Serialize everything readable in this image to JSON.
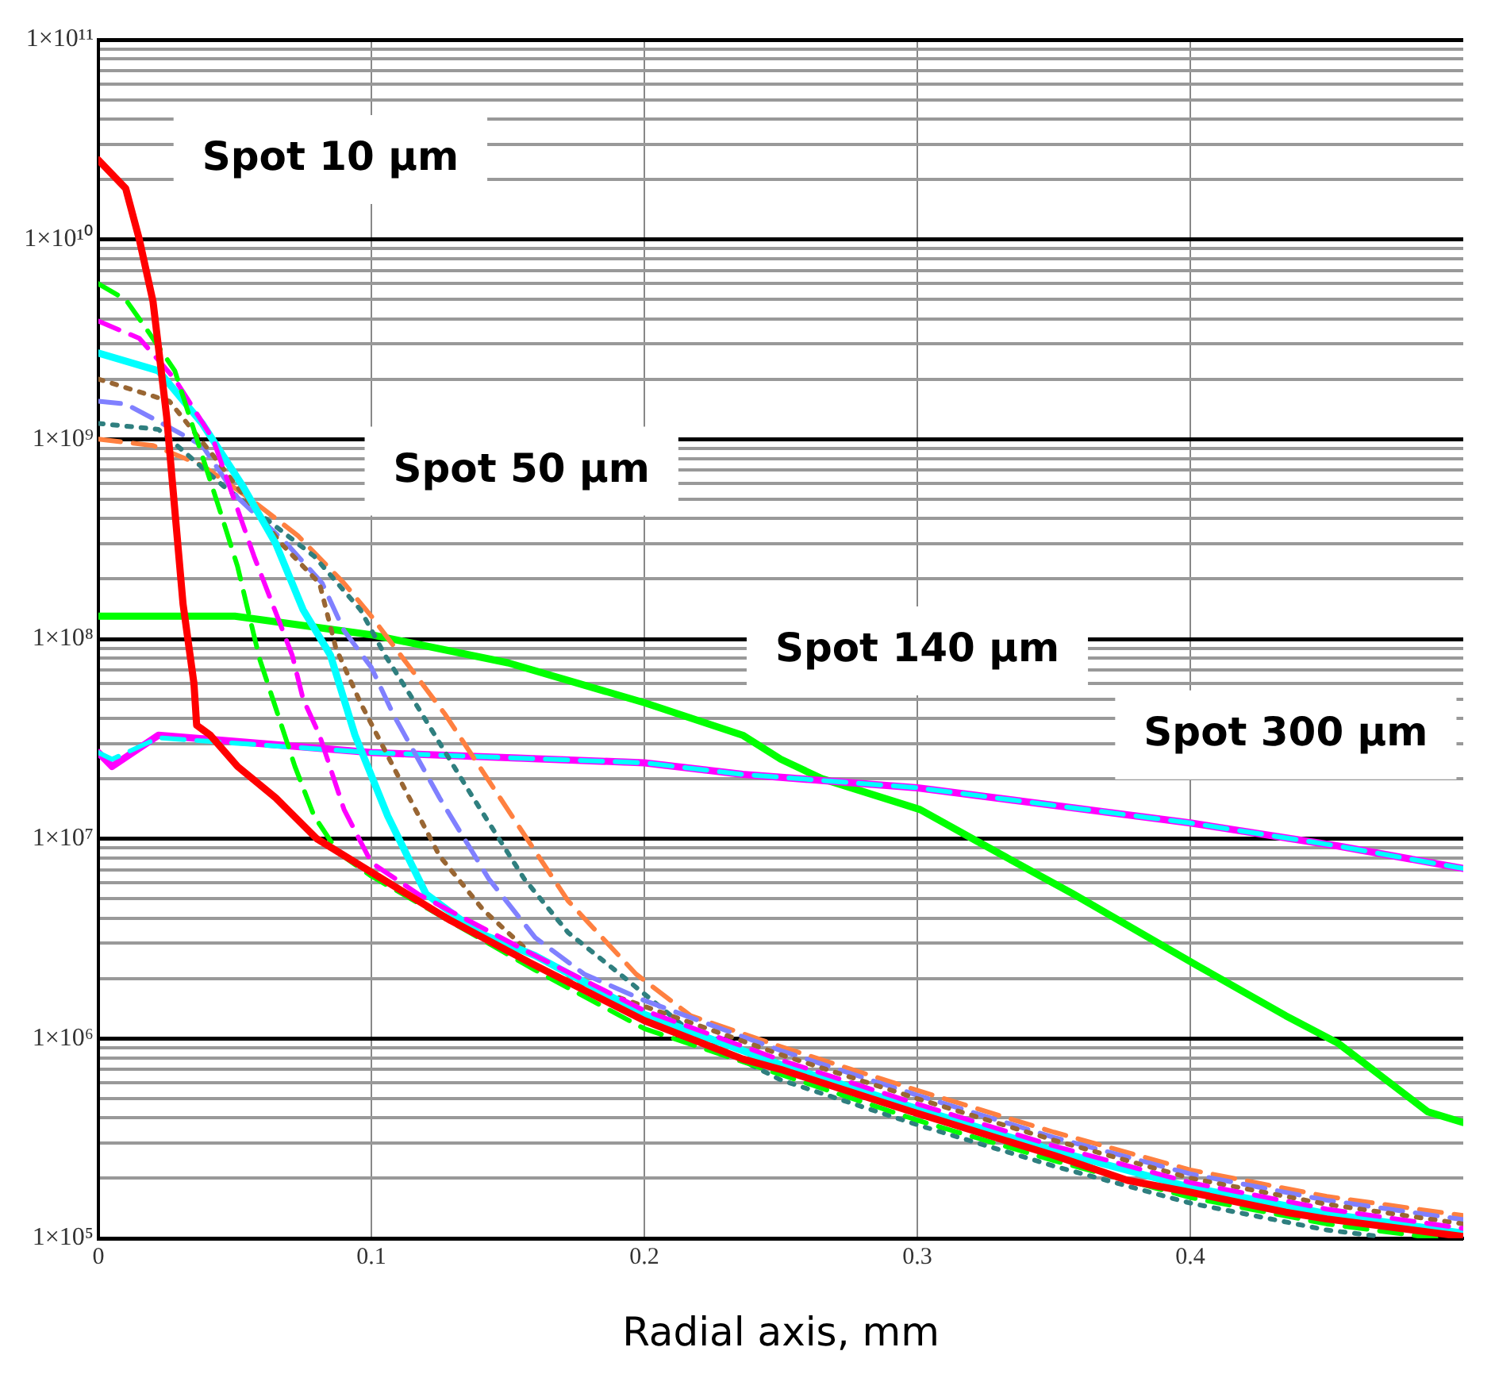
{
  "chart_data": {
    "type": "line",
    "xlabel": "Radial axis, mm",
    "log": "y",
    "grid": true,
    "marker": "none",
    "xlim": [
      0,
      0.5
    ],
    "xticks": [
      0,
      0.1,
      0.2,
      0.3,
      0.4
    ],
    "ylim": [
      100000.0,
      100000000000.0
    ],
    "yticks": [
      {
        "value": 100000.0,
        "label": "1×10⁵"
      },
      {
        "value": 200000.0,
        "label": null
      },
      {
        "value": 300000.0,
        "label": null
      },
      {
        "value": 400000.0,
        "label": null
      },
      {
        "value": 500000.0,
        "label": null
      },
      {
        "value": 600000.0,
        "label": null
      },
      {
        "value": 700000.0,
        "label": null
      },
      {
        "value": 800000.0,
        "label": null
      },
      {
        "value": 900000.0,
        "label": null
      },
      {
        "value": 1000000.0,
        "label": "1×10⁶"
      },
      {
        "value": 2000000.0,
        "label": null
      },
      {
        "value": 3000000.0,
        "label": null
      },
      {
        "value": 4000000.0,
        "label": null
      },
      {
        "value": 5000000.0,
        "label": null
      },
      {
        "value": 6000000.0,
        "label": null
      },
      {
        "value": 7000000.0,
        "label": null
      },
      {
        "value": 8000000.0,
        "label": null
      },
      {
        "value": 9000000.0,
        "label": null
      },
      {
        "value": 10000000.0,
        "label": "1×10⁷"
      },
      {
        "value": 20000000.0,
        "label": null
      },
      {
        "value": 30000000.0,
        "label": null
      },
      {
        "value": 40000000.0,
        "label": null
      },
      {
        "value": 50000000.0,
        "label": null
      },
      {
        "value": 60000000.0,
        "label": null
      },
      {
        "value": 70000000.0,
        "label": null
      },
      {
        "value": 80000000.0,
        "label": null
      },
      {
        "value": 90000000.0,
        "label": null
      },
      {
        "value": 100000000.0,
        "label": "1×10⁸"
      },
      {
        "value": 200000000.0,
        "label": null
      },
      {
        "value": 300000000.0,
        "label": null
      },
      {
        "value": 400000000.0,
        "label": null
      },
      {
        "value": 500000000.0,
        "label": null
      },
      {
        "value": 600000000.0,
        "label": null
      },
      {
        "value": 700000000.0,
        "label": null
      },
      {
        "value": 800000000.0,
        "label": null
      },
      {
        "value": 900000000.0,
        "label": null
      },
      {
        "value": 1000000000.0,
        "label": "1×10⁹"
      },
      {
        "value": 2000000000.0,
        "label": null
      },
      {
        "value": 3000000000.0,
        "label": null
      },
      {
        "value": 4000000000.0,
        "label": null
      },
      {
        "value": 5000000000.0,
        "label": null
      },
      {
        "value": 6000000000.0,
        "label": null
      },
      {
        "value": 7000000000.0,
        "label": null
      },
      {
        "value": 8000000000.0,
        "label": null
      },
      {
        "value": 9000000000.0,
        "label": null
      },
      {
        "value": 10000000000.0,
        "label": "1×10¹⁰"
      },
      {
        "value": 20000000000.0,
        "label": null
      },
      {
        "value": 30000000000.0,
        "label": null
      },
      {
        "value": 40000000000.0,
        "label": null
      },
      {
        "value": 50000000000.0,
        "label": null
      },
      {
        "value": 60000000000.0,
        "label": null
      },
      {
        "value": 70000000000.0,
        "label": null
      },
      {
        "value": 80000000000.0,
        "label": null
      },
      {
        "value": 90000000000.0,
        "label": null
      },
      {
        "value": 100000000000.0,
        "label": "1×10¹¹"
      }
    ],
    "annotations": [
      "Spot 10 µm",
      "Spot 50 µm",
      "Spot 140 µm",
      "Spot 300 µm"
    ],
    "series": [
      {
        "color": "#00ff00",
        "line_style": "solid",
        "x": [
          0,
          0.05,
          0.1,
          0.15,
          0.2,
          0.236,
          0.25,
          0.265,
          0.301,
          0.322,
          0.357,
          0.403,
          0.435,
          0.454,
          0.487,
          0.5
        ],
        "values": [
          130000000.0,
          130000000.0,
          105000000.0,
          76000000.0,
          48000000.0,
          33000000.0,
          25000000.0,
          20000000.0,
          14000000.0,
          9700000.0,
          5300000.0,
          2300000.0,
          1300000.0,
          950000.0,
          430000.0,
          380000.0
        ]
      },
      {
        "color": "#ff00ff",
        "line_style": "solid",
        "x": [
          0,
          0.005,
          0.022,
          0.1,
          0.2,
          0.236,
          0.3,
          0.4,
          0.454,
          0.5
        ],
        "values": [
          27000000.0,
          23000000.0,
          33000000.0,
          27000000.0,
          24000000.0,
          21000000.0,
          18000000.0,
          12000000.0,
          9200000.0,
          7100000.0
        ]
      },
      {
        "color": "#00ffff",
        "line_style": "dashed",
        "x": [
          0,
          0.005,
          0.022,
          0.1,
          0.2,
          0.236,
          0.3,
          0.4,
          0.454,
          0.5
        ],
        "values": [
          27000000.0,
          25000000.0,
          32000000.0,
          27000000.0,
          24000000.0,
          21000000.0,
          18000000.0,
          12000000.0,
          9200000.0,
          7100000.0
        ]
      },
      {
        "color": "#ff8040",
        "line_style": "dashed",
        "x": [
          0,
          0.02,
          0.038,
          0.055,
          0.073,
          0.09,
          0.1,
          0.127,
          0.155,
          0.172,
          0.197,
          0.217,
          0.25,
          0.3,
          0.35,
          0.4,
          0.45,
          0.5
        ],
        "values": [
          1000000000.0,
          930000000.0,
          740000000.0,
          510000000.0,
          330000000.0,
          190000000.0,
          130000000.0,
          42000000.0,
          11000000.0,
          4900000.0,
          2100000.0,
          1300000.0,
          910000.0,
          550000.0,
          340000.0,
          220000.0,
          162000.0,
          130000.0
        ]
      },
      {
        "color": "#2f7f7f",
        "line_style": "dotted",
        "x": [
          0,
          0.022,
          0.046,
          0.079,
          0.096,
          0.105,
          0.116,
          0.135,
          0.156,
          0.172,
          0.193,
          0.22,
          0.25,
          0.3,
          0.35,
          0.4,
          0.45,
          0.47
        ],
        "values": [
          1200000000.0,
          1120000000.0,
          580000000.0,
          260000000.0,
          140000000.0,
          83000000.0,
          48000000.0,
          18000000.0,
          6300000.0,
          3400000.0,
          2000000.0,
          1000000.0,
          620000.0,
          370000.0,
          230000.0,
          150000.0,
          110000.0,
          102000.0
        ]
      },
      {
        "color": "#8080ff",
        "line_style": "dashed",
        "x": [
          0,
          0.01,
          0.02,
          0.038,
          0.051,
          0.069,
          0.082,
          0.09,
          0.1,
          0.108,
          0.125,
          0.143,
          0.16,
          0.178,
          0.2,
          0.25,
          0.3,
          0.35,
          0.4,
          0.45,
          0.5
        ],
        "values": [
          1550000000.0,
          1500000000.0,
          1270000000.0,
          930000000.0,
          510000000.0,
          300000000.0,
          190000000.0,
          110000000.0,
          72000000.0,
          42000000.0,
          16000000.0,
          6300000.0,
          3200000.0,
          2100000.0,
          1550000.0,
          870000.0,
          520000.0,
          320000.0,
          210000.0,
          155000.0,
          124000.0
        ]
      },
      {
        "color": "#996633",
        "line_style": "dotted",
        "x": [
          0,
          0.026,
          0.042,
          0.067,
          0.081,
          0.087,
          0.096,
          0.112,
          0.125,
          0.141,
          0.158,
          0.18,
          0.2,
          0.25,
          0.3,
          0.35,
          0.4,
          0.45,
          0.5
        ],
        "values": [
          2000000000.0,
          1550000000.0,
          830000000.0,
          300000000.0,
          190000000.0,
          90000000.0,
          48000000.0,
          18000000.0,
          8200000.0,
          4400000.0,
          2700000.0,
          1800000.0,
          1450000.0,
          830000.0,
          500000.0,
          310000.0,
          200000.0,
          148000.0,
          118000.0
        ]
      },
      {
        "color": "#00ffff",
        "line_style": "solid",
        "x": [
          0,
          0.022,
          0.038,
          0.053,
          0.065,
          0.075,
          0.085,
          0.094,
          0.106,
          0.12,
          0.139,
          0.16,
          0.2,
          0.25,
          0.3,
          0.35,
          0.4,
          0.45,
          0.5
        ],
        "values": [
          2700000000.0,
          2200000000.0,
          1200000000.0,
          580000000.0,
          300000000.0,
          140000000.0,
          83000000.0,
          33000000.0,
          13000000.0,
          5300000.0,
          3400000.0,
          2600000.0,
          1320000.0,
          740000.0,
          445000.0,
          275000.0,
          180000.0,
          133000.0,
          106000.0
        ]
      },
      {
        "color": "#ff00ff",
        "line_style": "dashed",
        "x": [
          0,
          0.015,
          0.028,
          0.042,
          0.057,
          0.071,
          0.075,
          0.081,
          0.09,
          0.1,
          0.117,
          0.16,
          0.2,
          0.25,
          0.3,
          0.35,
          0.4,
          0.45,
          0.5
        ],
        "values": [
          3900000000.0,
          3200000000.0,
          2000000000.0,
          1000000000.0,
          260000000.0,
          83000000.0,
          50000000.0,
          33000000.0,
          14000000.0,
          7600000.0,
          5300000.0,
          2600000.0,
          1380000.0,
          780000.0,
          470000.0,
          290000.0,
          190000.0,
          140000.0,
          112000.0
        ]
      },
      {
        "color": "#00ff00",
        "line_style": "dashed",
        "x": [
          0,
          0.01,
          0.018,
          0.028,
          0.046,
          0.051,
          0.059,
          0.065,
          0.072,
          0.079,
          0.088,
          0.1,
          0.16,
          0.2,
          0.25,
          0.3,
          0.35,
          0.4,
          0.45,
          0.49
        ],
        "values": [
          6000000000.0,
          5000000000.0,
          3500000000.0,
          2200000000.0,
          380000000.0,
          230000000.0,
          80000000.0,
          45000000.0,
          23000000.0,
          13000000.0,
          8500000.0,
          6500000.0,
          2200000.0,
          1120000.0,
          660000.0,
          390000.0,
          245000.0,
          160000.0,
          118000.0,
          100000.0
        ]
      },
      {
        "color": "#ff0000",
        "line_style": "solid",
        "x": [
          0,
          0.01,
          0.015,
          0.02,
          0.025,
          0.031,
          0.035,
          0.036,
          0.041,
          0.051,
          0.065,
          0.08,
          0.1,
          0.129,
          0.158,
          0.2,
          0.236,
          0.25,
          0.298,
          0.35,
          0.377,
          0.4,
          0.435,
          0.45,
          0.5
        ],
        "values": [
          25000000000.0,
          18000000000.0,
          10000000000.0,
          4900000000.0,
          1300000000.0,
          150000000.0,
          60000000.0,
          37000000.0,
          33000000.0,
          23000000.0,
          16000000.0,
          10000000.0,
          6800000.0,
          3900000.0,
          2400000.0,
          1230000.0,
          790000.0,
          700000.0,
          430000.0,
          260000.0,
          195000.0,
          170000.0,
          135000.0,
          125000.0,
          102000.0
        ]
      }
    ]
  }
}
